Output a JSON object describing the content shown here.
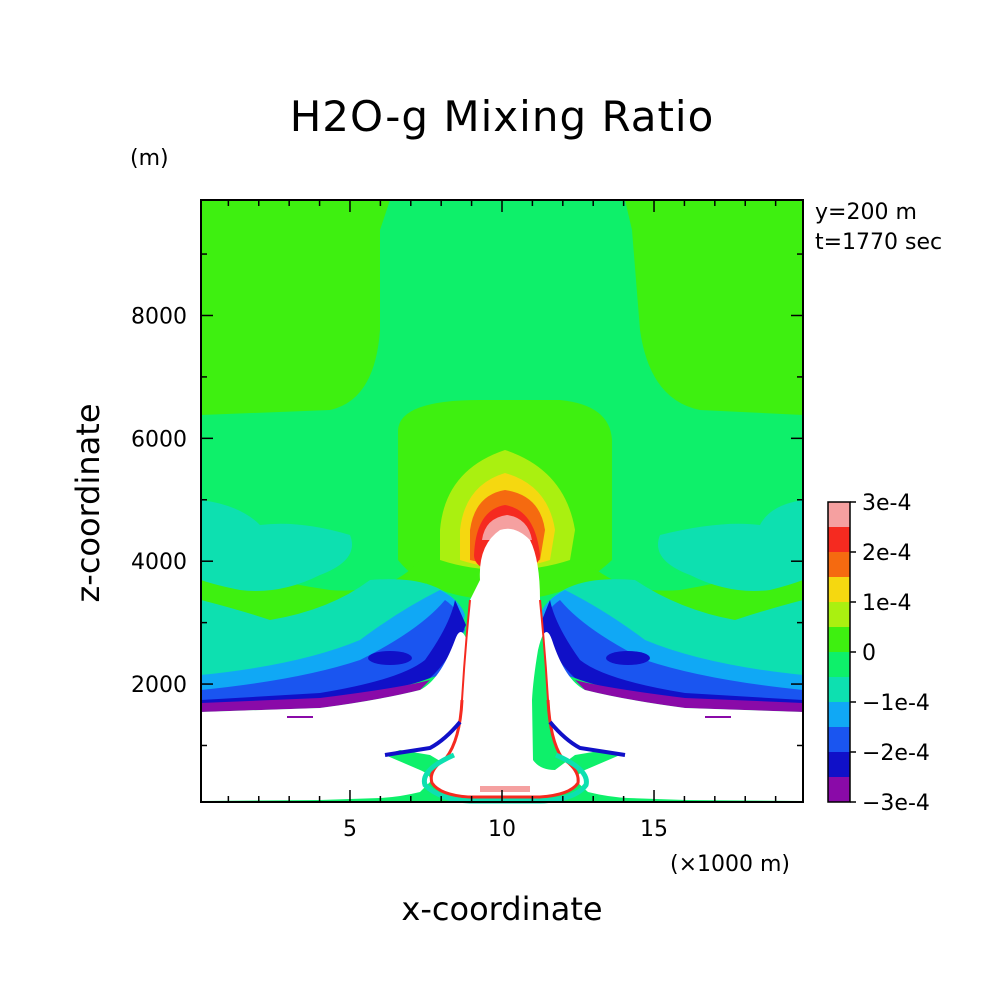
{
  "chart_data": {
    "type": "heatmap",
    "title": "H2O-g Mixing Ratio",
    "ylabel": "z-coordinate",
    "y_unit": "(m)",
    "xlabel": "x-coordinate",
    "x_unit": "(×1000 m)",
    "annotations": [
      "y=200 m",
      "t=1770 sec"
    ],
    "xlim": [
      0.1,
      19.9
    ],
    "ylim": [
      80,
      9880
    ],
    "x_ticks": [
      5,
      10,
      15
    ],
    "x_tick_labels": [
      "5",
      "10",
      "15"
    ],
    "y_ticks": [
      2000,
      4000,
      6000,
      8000
    ],
    "y_tick_labels": [
      "2000",
      "4000",
      "6000",
      "8000"
    ],
    "colorbar": {
      "levels": [
        {
          "value": -0.0003,
          "color": "#8a0aa8"
        },
        {
          "value": -0.00025,
          "color": "#1010c8"
        },
        {
          "value": -0.0002,
          "color": "#1a55f0"
        },
        {
          "value": -0.00015,
          "color": "#10a8f5"
        },
        {
          "value": -0.0001,
          "color": "#0de0b0"
        },
        {
          "value": -5e-05,
          "color": "#0ef06a"
        },
        {
          "value": 0,
          "color": "#3ef010"
        },
        {
          "value": 5e-05,
          "color": "#aaf010"
        },
        {
          "value": 0.0001,
          "color": "#f5d810"
        },
        {
          "value": 0.00015,
          "color": "#f56a10"
        },
        {
          "value": 0.0002,
          "color": "#f52a20"
        },
        {
          "value": 0.00025,
          "color": "#f5a0a0"
        }
      ],
      "labels": [
        "3e-4",
        "2e-4",
        "1e-4",
        "0",
        "−1e-4",
        "−2e-4",
        "−3e-4"
      ]
    },
    "grid": false
  }
}
